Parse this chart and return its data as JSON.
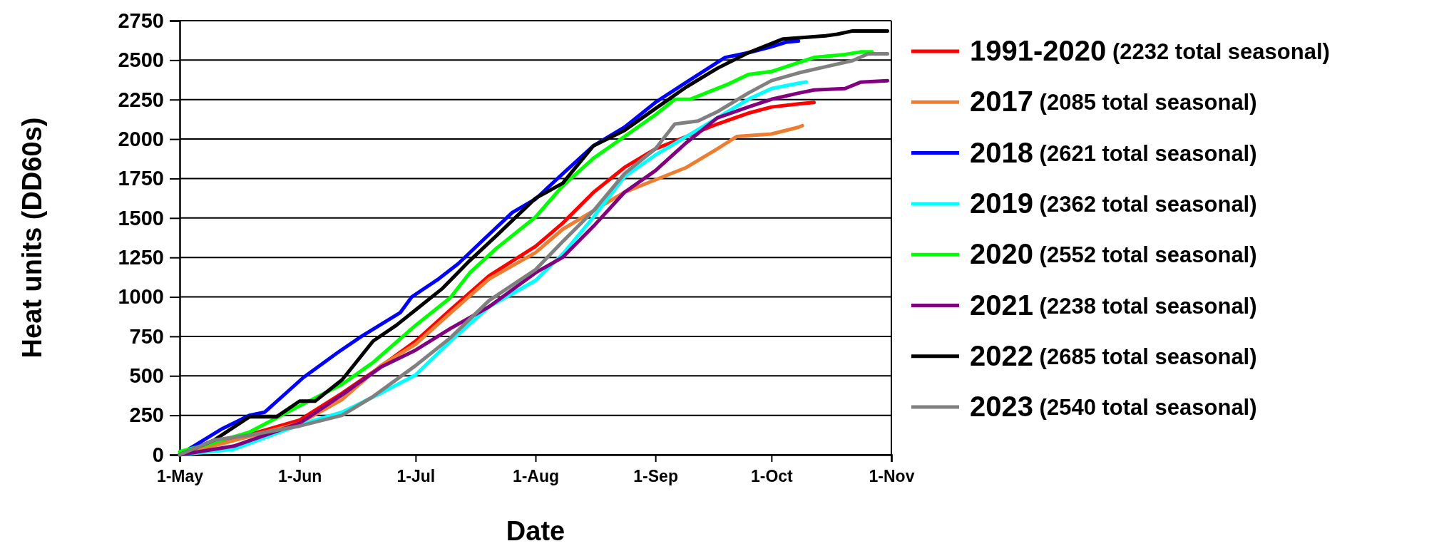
{
  "chart_data": {
    "type": "line",
    "xlabel": "Date",
    "ylabel": "Heat units (DD60s)",
    "xlim": [
      "--05-01",
      "--11-01"
    ],
    "xticks": [
      {
        "value": "--05-01",
        "label": "1-May"
      },
      {
        "value": "--06-01",
        "label": "1-Jun"
      },
      {
        "value": "--07-01",
        "label": "1-Jul"
      },
      {
        "value": "--08-01",
        "label": "1-Aug"
      },
      {
        "value": "--09-01",
        "label": "1-Sep"
      },
      {
        "value": "--10-01",
        "label": "1-Oct"
      },
      {
        "value": "--11-01",
        "label": "1-Nov"
      }
    ],
    "ylim": [
      0,
      2750
    ],
    "yticks": [
      0,
      250,
      500,
      750,
      1000,
      1250,
      1500,
      1750,
      2000,
      2250,
      2500,
      2750
    ],
    "grid": "y",
    "legend": "right",
    "marker": "none",
    "line_style": "solid",
    "series": [
      {
        "name": "1991-2020 (2232 total seasonal)",
        "color": "#ff0000",
        "x": [
          "--05-01",
          "--06-01",
          "--06-12",
          "--06-20",
          "--07-01",
          "--07-10",
          "--07-20",
          "--08-01",
          "--08-08",
          "--08-16",
          "--08-24",
          "--09-01",
          "--09-09",
          "--09-17",
          "--09-25",
          "--10-01",
          "--10-08",
          "--10-12"
        ],
        "values": [
          0,
          220,
          390,
          525,
          720,
          918,
          1134,
          1320,
          1467,
          1663,
          1820,
          1938,
          2016,
          2095,
          2164,
          2203,
          2223,
          2232
        ]
      },
      {
        "name": "2017 (2085 total seasonal)",
        "color": "#ed7d31",
        "x": [
          "--05-01",
          "--06-01",
          "--06-12",
          "--06-22",
          "--07-01",
          "--07-10",
          "--07-20",
          "--08-01",
          "--08-08",
          "--08-16",
          "--08-24",
          "--09-01",
          "--09-09",
          "--09-17",
          "--09-22",
          "--10-01",
          "--10-08",
          "--10-09"
        ],
        "values": [
          0,
          200,
          350,
          565,
          700,
          898,
          1114,
          1281,
          1428,
          1546,
          1663,
          1742,
          1820,
          1938,
          2016,
          2032,
          2075,
          2085
        ]
      },
      {
        "name": "2018 (2621 total seasonal)",
        "color": "#0000ff",
        "x": [
          "--05-01",
          "--05-12",
          "--05-19",
          "--05-23",
          "--06-02",
          "--06-11",
          "--06-17",
          "--06-27",
          "--06-30",
          "--07-07",
          "--07-12",
          "--07-18",
          "--07-26",
          "--08-01",
          "--08-08",
          "--08-16",
          "--08-24",
          "--09-01",
          "--09-09",
          "--09-19",
          "--09-25",
          "--10-01",
          "--10-05",
          "--10-08"
        ],
        "values": [
          0,
          165,
          250,
          270,
          490,
          650,
          750,
          900,
          1000,
          1115,
          1210,
          1350,
          1535,
          1620,
          1780,
          1958,
          2075,
          2232,
          2360,
          2517,
          2547,
          2585,
          2615,
          2621
        ]
      },
      {
        "name": "2019 (2362 total seasonal)",
        "color": "#00ffff",
        "x": [
          "--05-01",
          "--05-15",
          "--06-01",
          "--06-12",
          "--06-22",
          "--07-01",
          "--07-10",
          "--07-20",
          "--08-01",
          "--08-08",
          "--08-16",
          "--08-24",
          "--09-01",
          "--09-09",
          "--09-17",
          "--09-25",
          "--10-01",
          "--10-08",
          "--10-10"
        ],
        "values": [
          0,
          35,
          190,
          270,
          390,
          506,
          720,
          938,
          1104,
          1271,
          1506,
          1761,
          1899,
          2016,
          2134,
          2252,
          2320,
          2354,
          2362
        ]
      },
      {
        "name": "2020 (2552 total seasonal)",
        "color": "#00ff00",
        "x": [
          "--05-01",
          "--05-08",
          "--05-19",
          "--06-01",
          "--06-12",
          "--06-20",
          "--07-01",
          "--07-10",
          "--07-15",
          "--07-22",
          "--08-01",
          "--08-08",
          "--08-16",
          "--08-24",
          "--09-01",
          "--09-06",
          "--09-10",
          "--09-20",
          "--09-25",
          "--10-01",
          "--10-06",
          "--10-12",
          "--10-20",
          "--10-24",
          "--10-27"
        ],
        "values": [
          20,
          65,
          143,
          310,
          447,
          585,
          820,
          996,
          1153,
          1310,
          1506,
          1703,
          1879,
          2016,
          2154,
          2252,
          2252,
          2350,
          2409,
          2428,
          2468,
          2517,
          2536,
          2552,
          2552
        ]
      },
      {
        "name": "2021 (2238 total seasonal)",
        "color": "#800080",
        "x": [
          "--05-01",
          "--05-15",
          "--06-01",
          "--06-12",
          "--06-22",
          "--07-01",
          "--07-10",
          "--07-20",
          "--08-01",
          "--08-08",
          "--08-16",
          "--08-24",
          "--09-01",
          "--09-09",
          "--09-17",
          "--09-25",
          "--10-01",
          "--10-08",
          "--10-12",
          "--10-20",
          "--10-24",
          "--10-31"
        ],
        "values": [
          0,
          55,
          200,
          380,
          555,
          663,
          800,
          938,
          1153,
          1251,
          1448,
          1663,
          1800,
          1977,
          2134,
          2203,
          2252,
          2291,
          2311,
          2320,
          2360,
          2370
        ]
      },
      {
        "name": "2022 (2685 total seasonal)",
        "color": "#000000",
        "x": [
          "--05-01",
          "--05-10",
          "--05-19",
          "--05-26",
          "--06-01",
          "--06-05",
          "--06-12",
          "--06-20",
          "--06-26",
          "--07-01",
          "--07-08",
          "--07-15",
          "--07-22",
          "--08-01",
          "--08-08",
          "--08-16",
          "--08-24",
          "--09-01",
          "--09-09",
          "--09-17",
          "--09-25",
          "--10-01",
          "--10-04",
          "--10-15",
          "--10-18",
          "--10-22",
          "--10-31"
        ],
        "values": [
          0,
          94,
          240,
          240,
          340,
          340,
          475,
          720,
          820,
          918,
          1055,
          1230,
          1390,
          1625,
          1720,
          1958,
          2055,
          2193,
          2330,
          2448,
          2547,
          2605,
          2634,
          2654,
          2664,
          2685,
          2685
        ]
      },
      {
        "name": "2023 (2540 total seasonal)",
        "color": "#808080",
        "x": [
          "--05-01",
          "--05-10",
          "--05-19",
          "--06-01",
          "--06-12",
          "--06-20",
          "--07-01",
          "--07-10",
          "--07-20",
          "--08-01",
          "--08-08",
          "--08-16",
          "--08-24",
          "--09-01",
          "--09-06",
          "--09-12",
          "--09-17",
          "--09-25",
          "--10-01",
          "--10-08",
          "--10-15",
          "--10-22",
          "--10-26",
          "--10-31"
        ],
        "values": [
          0,
          94,
          124,
          182,
          250,
          369,
          565,
          741,
          977,
          1173,
          1350,
          1546,
          1781,
          1938,
          2095,
          2114,
          2173,
          2291,
          2370,
          2419,
          2458,
          2497,
          2540,
          2540
        ]
      }
    ]
  }
}
